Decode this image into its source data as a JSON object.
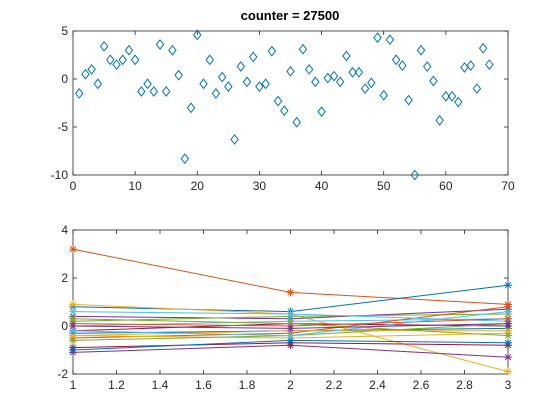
{
  "figure": {
    "background": "#ffffff",
    "axis_color": "#262626"
  },
  "chart_data": [
    {
      "type": "scatter",
      "title": "counter = 27500",
      "xlabel": "",
      "ylabel": "",
      "xlim": [
        0,
        70
      ],
      "ylim": [
        -10,
        5
      ],
      "xticks": [
        "0",
        "10",
        "20",
        "30",
        "40",
        "50",
        "60",
        "70"
      ],
      "yticks": [
        "5",
        "0",
        "-5",
        "-10"
      ],
      "marker": "diamond",
      "color": "#0072BD",
      "grid": false,
      "x": [
        1,
        2,
        3,
        4,
        5,
        6,
        7,
        8,
        9,
        10,
        11,
        12,
        13,
        14,
        15,
        16,
        17,
        18,
        19,
        20,
        21,
        22,
        23,
        24,
        25,
        26,
        27,
        28,
        29,
        30,
        31,
        32,
        33,
        34,
        35,
        36,
        37,
        38,
        39,
        40,
        41,
        42,
        43,
        44,
        45,
        46,
        47,
        48,
        49,
        50,
        51,
        52,
        53,
        54,
        55,
        56,
        57,
        58,
        59,
        60,
        61,
        62,
        63,
        64,
        65,
        66,
        67
      ],
      "y": [
        -1.5,
        0.5,
        1.0,
        -0.5,
        3.4,
        2.0,
        1.5,
        2.0,
        3.0,
        2.0,
        -1.3,
        -0.5,
        -1.3,
        3.6,
        -1.3,
        3.0,
        0.4,
        -8.3,
        -3.0,
        4.6,
        -0.5,
        2.0,
        -1.5,
        0.2,
        -0.8,
        -6.3,
        1.3,
        -0.3,
        2.3,
        -0.8,
        -0.5,
        2.9,
        -2.3,
        -3.3,
        0.8,
        -4.5,
        3.1,
        1.0,
        -0.3,
        -3.4,
        0.1,
        0.3,
        -0.3,
        2.4,
        0.7,
        0.7,
        -1.0,
        -0.4,
        4.3,
        -1.7,
        4.1,
        2.0,
        1.4,
        -2.2,
        -10.0,
        3.0,
        1.3,
        -0.2,
        -4.3,
        -1.8,
        -1.8,
        -2.4,
        1.2,
        1.4,
        -1.0,
        3.2,
        1.5
      ]
    },
    {
      "type": "line",
      "title": "",
      "xlabel": "",
      "ylabel": "",
      "xlim": [
        1,
        3
      ],
      "ylim": [
        -2,
        4
      ],
      "xticks": [
        "1",
        "1.2",
        "1.4",
        "1.6",
        "1.8",
        "2",
        "2.2",
        "2.4",
        "2.6",
        "2.8",
        "3"
      ],
      "yticks": [
        "4",
        "2",
        "0",
        "-2"
      ],
      "marker": "asterisk",
      "grid": false,
      "categories": [
        1,
        2,
        3
      ],
      "series": [
        {
          "color": "#D95319",
          "values": [
            3.2,
            1.4,
            0.9
          ]
        },
        {
          "color": "#0072BD",
          "values": [
            0.8,
            0.6,
            1.7
          ]
        },
        {
          "color": "#EDB120",
          "values": [
            0.9,
            0.5,
            -1.9
          ]
        },
        {
          "color": "#7E2F8E",
          "values": [
            0.4,
            0.3,
            0.7
          ]
        },
        {
          "color": "#77AC30",
          "values": [
            0.2,
            0.4,
            0.5
          ]
        },
        {
          "color": "#4DBEEE",
          "values": [
            0.0,
            0.2,
            0.3
          ]
        },
        {
          "color": "#A2142F",
          "values": [
            -0.2,
            0.1,
            0.0
          ]
        },
        {
          "color": "#0072BD",
          "values": [
            -0.3,
            -0.2,
            -0.1
          ]
        },
        {
          "color": "#D95319",
          "values": [
            -0.5,
            -0.3,
            0.8
          ]
        },
        {
          "color": "#EDB120",
          "values": [
            -0.4,
            -0.5,
            -0.3
          ]
        },
        {
          "color": "#7E2F8E",
          "values": [
            -1.1,
            -0.8,
            -1.3
          ]
        },
        {
          "color": "#77AC30",
          "values": [
            -0.6,
            -0.4,
            0.1
          ]
        },
        {
          "color": "#4DBEEE",
          "values": [
            0.6,
            0.5,
            0.2
          ]
        },
        {
          "color": "#A2142F",
          "values": [
            -0.9,
            -0.7,
            -0.8
          ]
        },
        {
          "color": "#0072BD",
          "values": [
            -1.0,
            -0.6,
            -0.7
          ]
        },
        {
          "color": "#D95319",
          "values": [
            0.1,
            0.0,
            0.3
          ]
        },
        {
          "color": "#EDB120",
          "values": [
            -0.4,
            -0.2,
            -0.2
          ]
        },
        {
          "color": "#77AC30",
          "values": [
            0.3,
            0.1,
            -0.4
          ]
        },
        {
          "color": "#4DBEEE",
          "values": [
            -0.2,
            -0.4,
            0.6
          ]
        },
        {
          "color": "#7E2F8E",
          "values": [
            0.0,
            -0.1,
            0.1
          ]
        }
      ]
    }
  ]
}
